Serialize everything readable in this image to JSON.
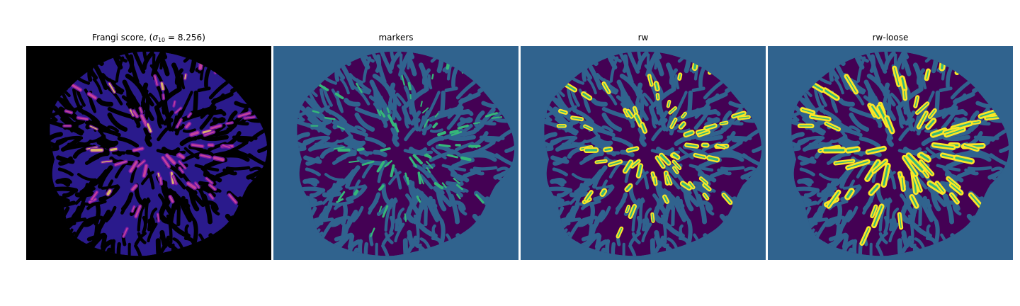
{
  "figure": {
    "panels": [
      {
        "title_prefix": "Frangi score, (",
        "title_symbol": "σ",
        "title_subscript": "10",
        "title_suffix": " = 8.256)",
        "colormap": "plasma",
        "colors": {
          "background": "#000000",
          "tissue": "#2a1a8c",
          "mid": "#7a1aa8",
          "high": "#d24a9a",
          "peak": "#f0d060"
        }
      },
      {
        "title": "markers",
        "colors": {
          "background": "#30638e",
          "tissue": "#440154",
          "marker": "#35b779"
        }
      },
      {
        "title": "rw",
        "colors": {
          "background": "#30638e",
          "tissue": "#440154",
          "vessel_fill": "#fde725",
          "vessel_edge": "#35b779"
        }
      },
      {
        "title": "rw-loose",
        "colors": {
          "background": "#30638e",
          "tissue": "#440154",
          "vessel_fill": "#fde725",
          "vessel_edge": "#35b779"
        }
      }
    ]
  }
}
